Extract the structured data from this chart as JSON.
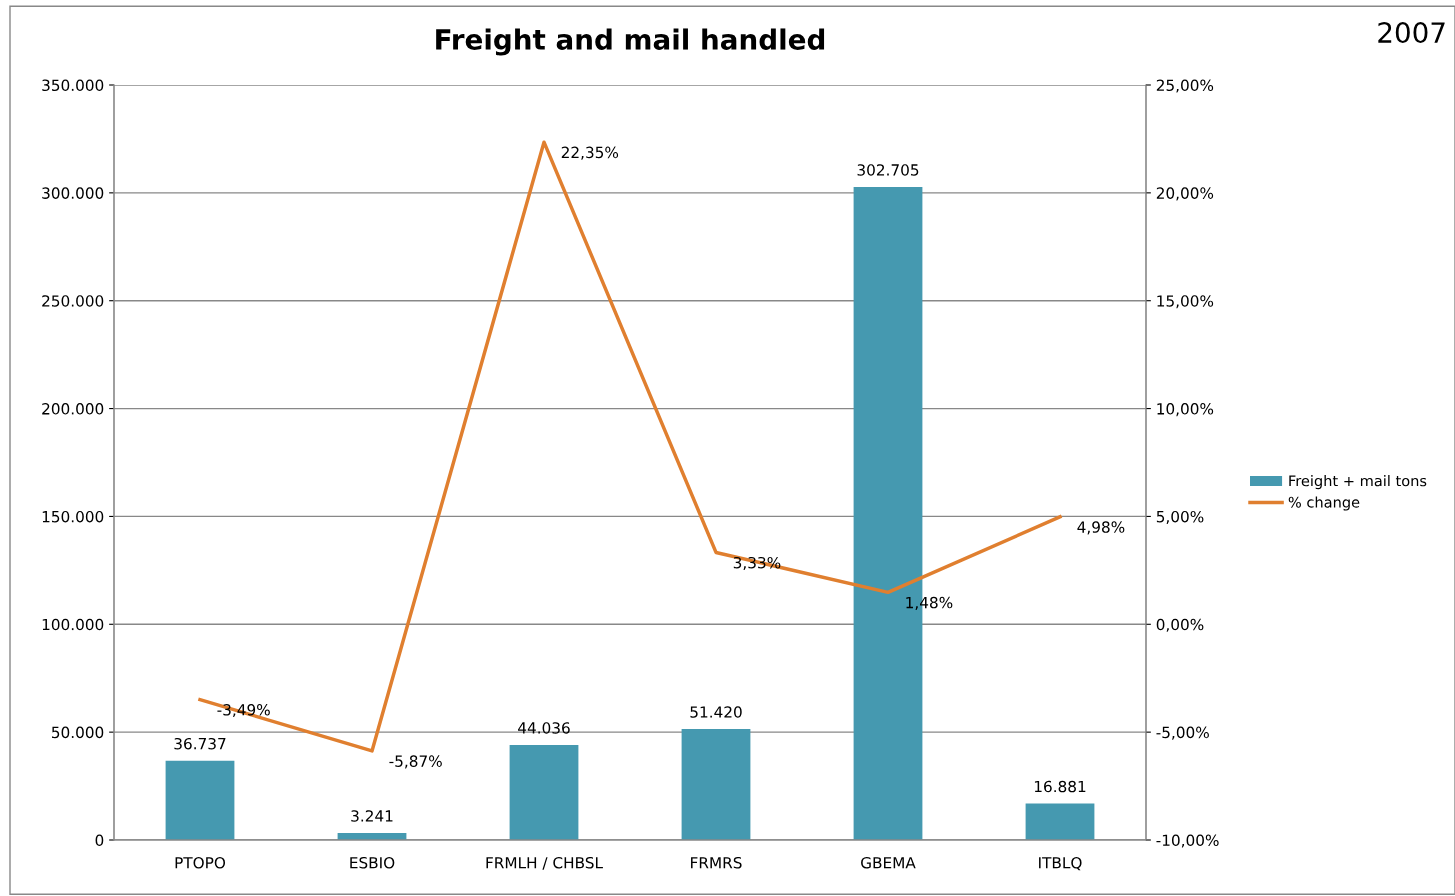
{
  "chart_data": {
    "type": "bar",
    "title": "Freight and mail handled",
    "annotations": [
      "2007"
    ],
    "categories": [
      "PTOPO",
      "ESBIO",
      "FRMLH / CHBSL",
      "FRMRS",
      "GBEMA",
      "ITBLQ"
    ],
    "series": [
      {
        "name": "Freight + mail tons",
        "color": "#4599b0",
        "values": [
          36737,
          3241,
          44036,
          51420,
          302705,
          16881
        ],
        "value_labels": [
          "36.737",
          "3.241",
          "44.036",
          "51.420",
          "302.705",
          "16.881"
        ]
      },
      {
        "name": "% change",
        "type": "line",
        "axis": "y2",
        "color": "#e07f2f",
        "values": [
          -3.49,
          -5.87,
          22.35,
          3.33,
          1.48,
          4.98
        ],
        "value_labels": [
          "-3,49%",
          "-5,87%",
          "22,35%",
          "3,33%",
          "1,48%",
          "4,98%"
        ]
      }
    ],
    "ylim": [
      0,
      350000
    ],
    "yticks": [
      {
        "value": 0,
        "label": "0"
      },
      {
        "value": 50000,
        "label": "50.000"
      },
      {
        "value": 100000,
        "label": "100.000"
      },
      {
        "value": 150000,
        "label": "150.000"
      },
      {
        "value": 200000,
        "label": "200.000"
      },
      {
        "value": 250000,
        "label": "250.000"
      },
      {
        "value": 300000,
        "label": "300.000"
      },
      {
        "value": 350000,
        "label": "350.000"
      }
    ],
    "y2lim": [
      -10,
      25
    ],
    "y2ticks": [
      {
        "value": -10,
        "label": "-10,00%"
      },
      {
        "value": -5,
        "label": "-5,00%"
      },
      {
        "value": 0,
        "label": "0,00%"
      },
      {
        "value": 5,
        "label": "5,00%"
      },
      {
        "value": 10,
        "label": "10,00%"
      },
      {
        "value": 15,
        "label": "15,00%"
      },
      {
        "value": 20,
        "label": "20,00%"
      },
      {
        "value": 25,
        "label": "25,00%"
      }
    ],
    "grid": "y",
    "legend": "right",
    "marker": "none",
    "line_style": "solid"
  }
}
